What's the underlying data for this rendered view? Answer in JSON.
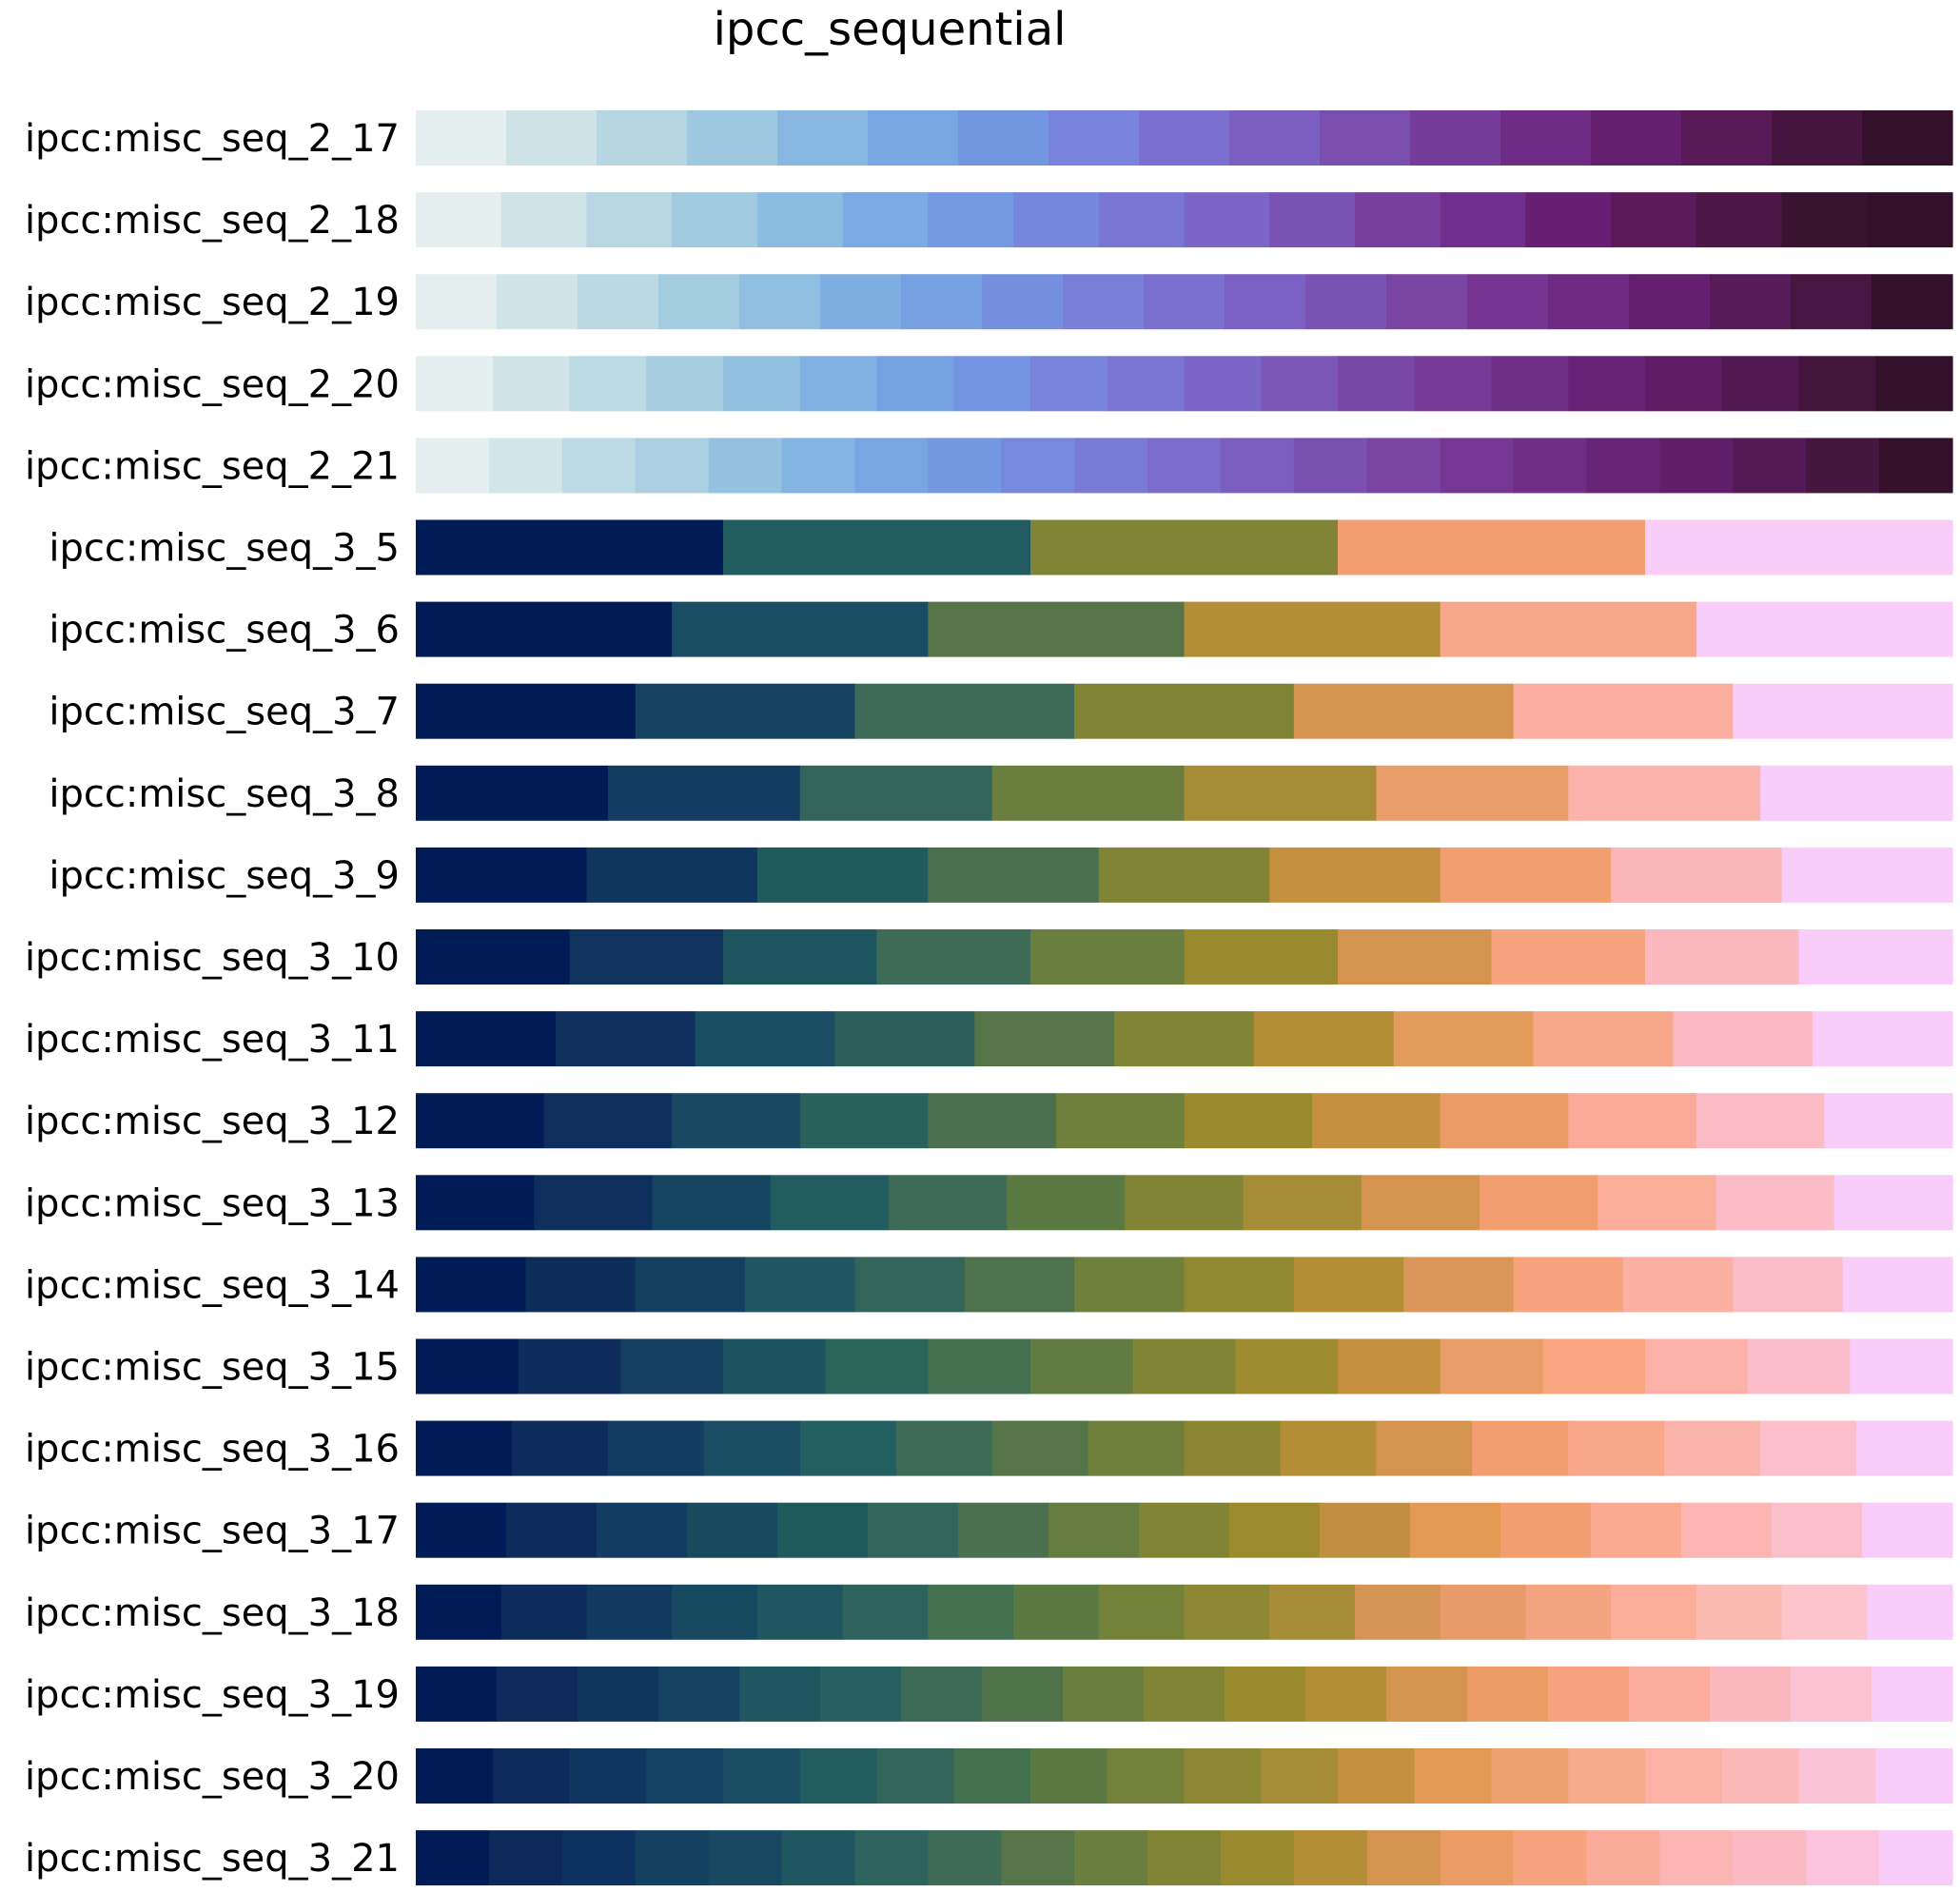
{
  "chart_data": {
    "type": "colormap-swatches",
    "title": "ipcc_sequential",
    "seq2_start": [
      "#e6eff0",
      "#cde3e6",
      "#b5d6e2",
      "#9ec8e0",
      "#88b8e1",
      "#78a6e2",
      "#7396e1",
      "#7783dc",
      "#7b70d1",
      "#7b5fc1",
      "#7a4eaf",
      "#763c9a",
      "#6e2c86",
      "#641f6f",
      "#571a56",
      "#461540",
      "#34112a"
    ],
    "seq3_start": [
      "#011b56",
      "#0e2f5c",
      "#16425f",
      "#1f5660",
      "#2b6459",
      "#43714f",
      "#5b7a43",
      "#738238",
      "#8d8833",
      "#a78c37",
      "#c08f42",
      "#d69454",
      "#e89a68",
      "#f4a481",
      "#fbae9a",
      "#fbbab2",
      "#fbc5cb",
      "#f9cdf9"
    ],
    "rows": [
      {
        "label": "ipcc:misc_seq_2_17",
        "colors": [
          "#e6eff0",
          "#cde3e6",
          "#b5d6e2",
          "#9ec8e0",
          "#88b8e1",
          "#78a6e2",
          "#7396e1",
          "#7783dc",
          "#7b70d1",
          "#7b5fc1",
          "#7a4eaf",
          "#763c9a",
          "#6e2c86",
          "#641f6f",
          "#571a56",
          "#461540",
          "#34112a"
        ]
      },
      {
        "label": "ipcc:misc_seq_2_18",
        "colors": [
          "#e6eff0",
          "#cfe4e7",
          "#b8d7e2",
          "#a1cae0",
          "#8dbce1",
          "#7babe2",
          "#7499e2",
          "#7687dd",
          "#7a76d4",
          "#7b65c6",
          "#7a54b5",
          "#783f9f",
          "#6f308b",
          "#661f73",
          "#5b1b5b",
          "#4b1745",
          "#3a132f",
          "#34112a"
        ]
      },
      {
        "label": "ipcc:misc_seq_2_19",
        "colors": [
          "#e6eff0",
          "#d0e5e8",
          "#bad9e3",
          "#a4cce0",
          "#90bfe1",
          "#7fafe2",
          "#76a0e2",
          "#7590df",
          "#7880d8",
          "#7b70d0",
          "#7b61c3",
          "#7a52b3",
          "#7944a2",
          "#753590",
          "#6d2a80",
          "#641f6f",
          "#581b59",
          "#481643",
          "#34112a"
        ]
      },
      {
        "label": "ipcc:misc_seq_2_20",
        "colors": [
          "#e6eff0",
          "#d1e5e8",
          "#bcdae3",
          "#a6cde0",
          "#92c0e1",
          "#81b1e2",
          "#77a2e2",
          "#7493e0",
          "#7784da",
          "#7a74d2",
          "#7b66c7",
          "#7b57b8",
          "#7948a7",
          "#773a96",
          "#6f2e86",
          "#672276",
          "#5e1c64",
          "#511851",
          "#43153d",
          "#34112a"
        ]
      },
      {
        "label": "ipcc:misc_seq_2_21",
        "colors": [
          "#e6eff0",
          "#d2e6e9",
          "#bddbe4",
          "#a9cfe1",
          "#95c2e1",
          "#84b4e2",
          "#79a5e2",
          "#7497e1",
          "#7689dc",
          "#797ad5",
          "#7b6ccb",
          "#7b5ebf",
          "#7a51b1",
          "#7944a2",
          "#763792",
          "#6f2d85",
          "#682477",
          "#601e68",
          "#541a56",
          "#451640",
          "#34112a"
        ]
      },
      {
        "label": "ipcc:misc_seq_3_5",
        "colors": [
          "#011b56",
          "#225c60",
          "#808434",
          "#f29e70",
          "#f9cdf9"
        ]
      },
      {
        "label": "ipcc:misc_seq_3_6",
        "colors": [
          "#011b56",
          "#1a4c63",
          "#557448",
          "#b48e37",
          "#f9a78b",
          "#f9cdf9"
        ]
      },
      {
        "label": "ipcc:misc_seq_3_7",
        "colors": [
          "#011b56",
          "#164262",
          "#3c6a56",
          "#808434",
          "#d49450",
          "#fbada0",
          "#f9cdf9"
        ]
      },
      {
        "label": "ipcc:misc_seq_3_8",
        "colors": [
          "#011b56",
          "#133c62",
          "#33655a",
          "#6a7e3e",
          "#a78c37",
          "#e99d68",
          "#fbb4ac",
          "#f9cdf9"
        ]
      },
      {
        "label": "ipcc:misc_seq_3_9",
        "colors": [
          "#011b56",
          "#10365e",
          "#215a5d",
          "#4b704f",
          "#808434",
          "#c49040",
          "#f29e70",
          "#fbb6b8",
          "#f9cdf9"
        ]
      },
      {
        "label": "ipcc:misc_seq_3_10",
        "colors": [
          "#011b56",
          "#10335e",
          "#1f555f",
          "#3e6b55",
          "#697e3f",
          "#998a30",
          "#d49450",
          "#f6a37e",
          "#fbb8be",
          "#f9cdf9"
        ]
      },
      {
        "label": "ipcc:misc_seq_3_11",
        "colors": [
          "#011b56",
          "#0e2f5c",
          "#1a4c63",
          "#2d5f5b",
          "#557448",
          "#808434",
          "#b48e37",
          "#e49c5c",
          "#f9a78b",
          "#fbbac3",
          "#f9cdf9"
        ]
      },
      {
        "label": "ipcc:misc_seq_3_12",
        "colors": [
          "#011b56",
          "#0e2f5c",
          "#184862",
          "#2a615c",
          "#4b704f",
          "#6f7f3c",
          "#998a30",
          "#c49040",
          "#eb9c64",
          "#fbaa99",
          "#fbbcc6",
          "#f9cdf9"
        ]
      },
      {
        "label": "ipcc:misc_seq_3_13",
        "colors": [
          "#011b56",
          "#0e2f5c",
          "#154460",
          "#225c60",
          "#3c6a56",
          "#5b7a43",
          "#808434",
          "#a78c37",
          "#d49450",
          "#f29e70",
          "#fbae9a",
          "#fbbcc7",
          "#f9cdf9"
        ]
      },
      {
        "label": "ipcc:misc_seq_3_14",
        "colors": [
          "#011b56",
          "#0d2d5b",
          "#144060",
          "#1f5660",
          "#33655a",
          "#4e724c",
          "#6f7f3c",
          "#928832",
          "#b48e37",
          "#db965a",
          "#f6a37e",
          "#fbb0a3",
          "#fbbdc8",
          "#f9cdf9"
        ]
      },
      {
        "label": "ipcc:misc_seq_3_15",
        "colors": [
          "#011b56",
          "#0e2c5b",
          "#143f60",
          "#1d5361",
          "#2b6459",
          "#43714f",
          "#617b41",
          "#808434",
          "#9e8b30",
          "#c49040",
          "#e99d68",
          "#f8a580",
          "#fbb0a8",
          "#fbbdc9",
          "#f9cdf9"
        ]
      },
      {
        "label": "ipcc:misc_seq_3_16",
        "colors": [
          "#011b56",
          "#0e2c5b",
          "#133c62",
          "#1a4c63",
          "#235e60",
          "#3c6a56",
          "#557448",
          "#6f7f3c",
          "#8b8632",
          "#b48e37",
          "#d49450",
          "#f29e70",
          "#f9a78b",
          "#fbb4ac",
          "#fbbeca",
          "#f9cdf9"
        ]
      },
      {
        "label": "ipcc:misc_seq_3_17",
        "colors": [
          "#011b56",
          "#0e2c5b",
          "#133c62",
          "#18495f",
          "#215a5d",
          "#33655a",
          "#4b704f",
          "#657d40",
          "#808434",
          "#9e8b30",
          "#c08f42",
          "#e49a55",
          "#f29e70",
          "#fbaa91",
          "#fbb5b2",
          "#fbbecb",
          "#f9cdf9"
        ]
      },
      {
        "label": "ipcc:misc_seq_3_18",
        "colors": [
          "#011b56",
          "#0d2b5b",
          "#123a60",
          "#174961",
          "#1f5660",
          "#2d635c",
          "#43714f",
          "#5b7a43",
          "#738238",
          "#8d8833",
          "#a78c37",
          "#d69454",
          "#e89a68",
          "#f4a481",
          "#fbae9a",
          "#fbbab2",
          "#fbc5cb",
          "#f9cdf9"
        ]
      },
      {
        "label": "ipcc:misc_seq_3_19",
        "colors": [
          "#011b56",
          "#0d2a5a",
          "#10365e",
          "#164262",
          "#1f5660",
          "#27605e",
          "#3c6a56",
          "#4f724b",
          "#697e3f",
          "#808434",
          "#998a30",
          "#b48e37",
          "#d49450",
          "#eb9c64",
          "#f6a37e",
          "#fbad9d",
          "#fbb8be",
          "#fbc2d4",
          "#f9cdf9"
        ]
      },
      {
        "label": "ipcc:misc_seq_3_20",
        "colors": [
          "#011b56",
          "#0c2a5a",
          "#10355e",
          "#144262",
          "#1a4c63",
          "#225c60",
          "#33655a",
          "#43714f",
          "#5b7a43",
          "#738238",
          "#8d8833",
          "#a78c37",
          "#c49040",
          "#e49a55",
          "#f0a170",
          "#f8aa8c",
          "#fbb2a4",
          "#fbbab8",
          "#fbc4d6",
          "#f9cdf9"
        ]
      },
      {
        "label": "ipcc:misc_seq_3_21",
        "colors": [
          "#011b56",
          "#0c2959",
          "#0e3260",
          "#144060",
          "#184862",
          "#1f5660",
          "#2d635c",
          "#3e6b55",
          "#557448",
          "#697e3f",
          "#808434",
          "#998a30",
          "#b48e37",
          "#d49450",
          "#eb9c64",
          "#f6a37e",
          "#fbab99",
          "#fbb5b3",
          "#fbbac3",
          "#fbc4dc",
          "#f9cdf9"
        ]
      }
    ]
  }
}
